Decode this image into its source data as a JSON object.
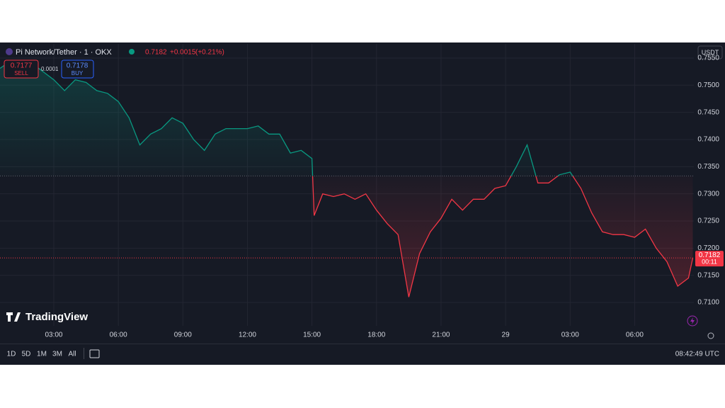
{
  "header": {
    "symbol": "Pi Network/Tether · 1 · OKX",
    "change": "+0.0015",
    "change_pct": "(+0.21%)",
    "sell_price": "0.7177",
    "sell_label": "SELL",
    "spread": "0.0001",
    "buy_price": "0.7178",
    "buy_label": "BUY",
    "currency": "USDT"
  },
  "logo": "TradingView",
  "toolbar": {
    "ranges": [
      "1D",
      "5D",
      "1M",
      "3M",
      "All"
    ],
    "clock": "08:42:49 UTC"
  },
  "chart_data": {
    "type": "line",
    "x": [
      0.5,
      1,
      1.5,
      2,
      2.5,
      3,
      3.5,
      4,
      4.5,
      5,
      5.5,
      6,
      6.5,
      7,
      7.5,
      8,
      8.5,
      9,
      9.5,
      10,
      10.5,
      11,
      11.5,
      12,
      12.5,
      13,
      13.5,
      14,
      14.5,
      15,
      15.1,
      15.5,
      16,
      16.5,
      17,
      17.5,
      18,
      18.5,
      19,
      19.5,
      20,
      20.5,
      21,
      21.5,
      22,
      22.5,
      23,
      23.5,
      24,
      24.5,
      25,
      25.5,
      26,
      26.5,
      27,
      27.5,
      28,
      28.5,
      29,
      29.5,
      30,
      30.5,
      31,
      31.5,
      32,
      32.5,
      32.7
    ],
    "values": [
      0.7531,
      0.7545,
      0.7525,
      0.754,
      0.7525,
      0.751,
      0.749,
      0.751,
      0.7505,
      0.749,
      0.7485,
      0.747,
      0.744,
      0.739,
      0.741,
      0.742,
      0.744,
      0.743,
      0.74,
      0.738,
      0.741,
      0.742,
      0.742,
      0.742,
      0.7425,
      0.741,
      0.741,
      0.7375,
      0.738,
      0.7365,
      0.726,
      0.73,
      0.7295,
      0.73,
      0.729,
      0.73,
      0.727,
      0.7245,
      0.7225,
      0.711,
      0.719,
      0.723,
      0.7255,
      0.729,
      0.727,
      0.729,
      0.729,
      0.731,
      0.7315,
      0.735,
      0.739,
      0.732,
      0.732,
      0.7335,
      0.734,
      0.731,
      0.7265,
      0.723,
      0.7225,
      0.7225,
      0.722,
      0.7235,
      0.72,
      0.7175,
      0.713,
      0.7145,
      0.7182
    ],
    "color_up": "#089981",
    "color_down": "#f23645",
    "baseline": 0.7333,
    "last_price": 0.7182,
    "countdown": "00:11",
    "xlim": [
      0.5,
      32.75
    ],
    "xticks": [
      {
        "value": 3,
        "label": "03:00"
      },
      {
        "value": 6,
        "label": "06:00"
      },
      {
        "value": 9,
        "label": "09:00"
      },
      {
        "value": 12,
        "label": "12:00"
      },
      {
        "value": 15,
        "label": "15:00"
      },
      {
        "value": 18,
        "label": "18:00"
      },
      {
        "value": 21,
        "label": "21:00"
      },
      {
        "value": 24,
        "label": "29"
      },
      {
        "value": 27,
        "label": "03:00"
      },
      {
        "value": 30,
        "label": "06:00"
      }
    ],
    "ylim": [
      0.7057,
      0.7576
    ],
    "yticks": [
      {
        "value": 0.71,
        "label": "0.7100"
      },
      {
        "value": 0.715,
        "label": "0.7150"
      },
      {
        "value": 0.72,
        "label": "0.7200"
      },
      {
        "value": 0.725,
        "label": "0.7250"
      },
      {
        "value": 0.73,
        "label": "0.7300"
      },
      {
        "value": 0.735,
        "label": "0.7350"
      },
      {
        "value": 0.74,
        "label": "0.7400"
      },
      {
        "value": 0.745,
        "label": "0.7450"
      },
      {
        "value": 0.75,
        "label": "0.7500"
      },
      {
        "value": 0.755,
        "label": "0.7550"
      }
    ],
    "grid": true
  }
}
